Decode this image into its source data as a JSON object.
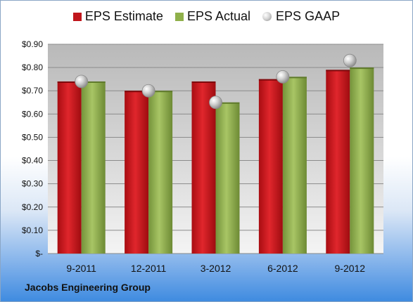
{
  "legend": {
    "estimate": "EPS Estimate",
    "actual": "EPS Actual",
    "gaap": "EPS GAAP"
  },
  "footer": {
    "company": "Jacobs Engineering Group"
  },
  "colors": {
    "estimate": "#c0161c",
    "actual": "#8fb04a",
    "gaap": "#b8b8b8"
  },
  "chart_data": {
    "type": "bar",
    "categories": [
      "9-2011",
      "12-2011",
      "3-2012",
      "6-2012",
      "9-2012"
    ],
    "series": [
      {
        "name": "EPS Estimate",
        "type": "bar",
        "values": [
          0.74,
          0.7,
          0.74,
          0.75,
          0.79
        ]
      },
      {
        "name": "EPS Actual",
        "type": "bar",
        "values": [
          0.74,
          0.7,
          0.65,
          0.76,
          0.8
        ]
      },
      {
        "name": "EPS GAAP",
        "type": "scatter",
        "values": [
          0.74,
          0.7,
          0.65,
          0.76,
          0.83
        ]
      }
    ],
    "yticks": [
      "$-",
      "$0.10",
      "$0.20",
      "$0.30",
      "$0.40",
      "$0.50",
      "$0.60",
      "$0.70",
      "$0.80",
      "$0.90"
    ],
    "ylim": [
      0,
      0.9
    ],
    "grid": true,
    "legend_position": "top",
    "xlabel": "",
    "ylabel": ""
  }
}
